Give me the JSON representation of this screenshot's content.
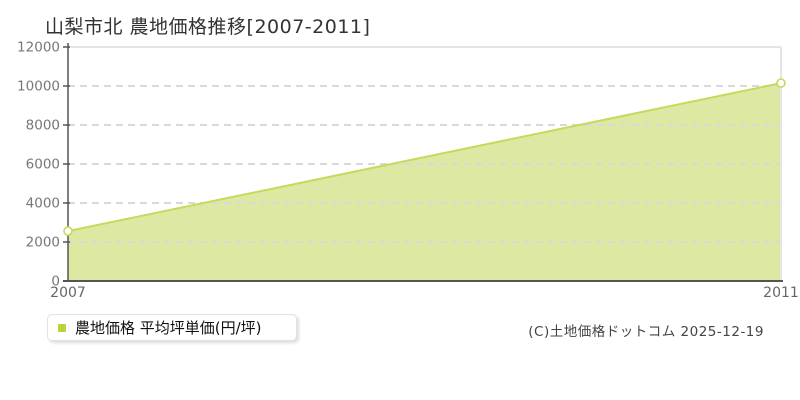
{
  "title": "山梨市北 農地価格推移[2007-2011]",
  "legend": {
    "label": "農地価格 平均坪単価(円/坪)",
    "marker_color": "#b5d53a"
  },
  "copyright": "(C)土地価格ドットコム 2025-12-19",
  "chart_data": {
    "type": "area",
    "title": "山梨市北 農地価格推移[2007-2011]",
    "x": [
      2007,
      2011
    ],
    "series": [
      {
        "name": "農地価格 平均坪単価(円/坪)",
        "values": [
          2560,
          10150
        ]
      }
    ],
    "xlabel": "",
    "ylabel": "平均坪単価(円/坪)",
    "ylim": [
      0,
      12000
    ],
    "yticks": [
      0,
      2000,
      4000,
      6000,
      8000,
      10000,
      12000
    ],
    "xticks": [
      2007,
      2011
    ],
    "grid": "horizontal-dashed",
    "legend_position": "bottom-left",
    "colors": {
      "line": "#c3da5c",
      "fill": "#dde9a2",
      "marker_fill": "#ffffff",
      "grid": "#d9d9d9",
      "border": "#e5e5e5",
      "axis": "#555555",
      "tick_label": "#777777"
    }
  }
}
